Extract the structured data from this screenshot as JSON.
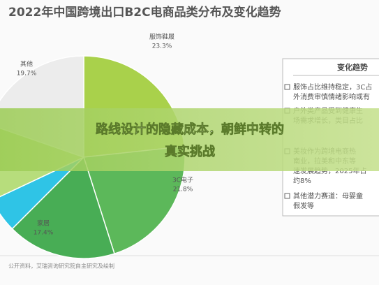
{
  "chart_data": {
    "type": "pie",
    "title": "2022年中国跨境出口B2C电商品类分布及变化趋势",
    "categories": [
      "服饰鞋履",
      "3C电子",
      "家居",
      null,
      null,
      "其他"
    ],
    "values": [
      23.3,
      21.8,
      17.4,
      5.5,
      12.3,
      19.7
    ],
    "value_labels": [
      "23.3%",
      "21.8%",
      "17.4%",
      null,
      null,
      "19.7%"
    ],
    "colors": [
      "#a9d14b",
      "#5cb85a",
      "#48ad55",
      "#2fc4e6",
      "#b7dd7c",
      "#ececec"
    ],
    "panel": {
      "title": "变化趋势",
      "items": [
        "服饰占比维持稳定，3C占",
        "外消费审慎情绪影响或有",
        "户外类产品受到健康生",
        "场需求增长，类目占比",
        "美妆作为跨境电商热",
        "南业，拉美和中东等",
        "速发展趋势，2025年占",
        "约8%",
        "其他潜力赛道：母婴童",
        "假发等"
      ]
    },
    "source": "公开资料，艾瑞咨询研究院自主研究及绘制",
    "overlay": [
      "路线设计的隐藏成本，朝鲜中转的",
      "真实挑战"
    ]
  }
}
